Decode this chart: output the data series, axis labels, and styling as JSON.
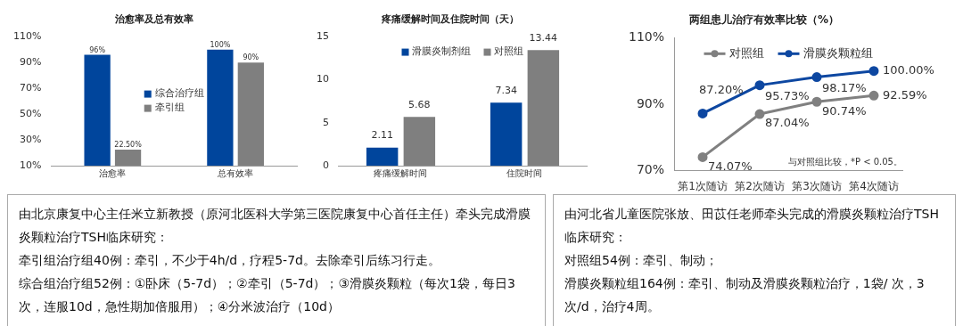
{
  "chart_data": [
    {
      "type": "bar",
      "title": "治愈率及总有效率",
      "categories": [
        "治愈率",
        "总有效率"
      ],
      "series": [
        {
          "name": "综合治疗组",
          "color": "#00459c",
          "values": [
            96,
            100
          ],
          "value_labels": [
            "96%",
            "100%"
          ]
        },
        {
          "name": "牵引组",
          "color": "#7f7f7f",
          "values": [
            22.5,
            90
          ],
          "value_labels": [
            "22.50%",
            "90%"
          ]
        }
      ],
      "ylim": [
        10,
        110
      ],
      "yticks": [
        {
          "value": 10,
          "label": "10%"
        },
        {
          "value": 30,
          "label": "30%"
        },
        {
          "value": 50,
          "label": "50%"
        },
        {
          "value": 70,
          "label": "70%"
        },
        {
          "value": 90,
          "label": "90%"
        },
        {
          "value": 110,
          "label": "110%"
        }
      ],
      "grid": false,
      "legend": "center"
    },
    {
      "type": "bar",
      "title": "疼痛缓解时间及住院时间（天）",
      "categories": [
        "疼痛缓解时间",
        "住院时间"
      ],
      "series": [
        {
          "name": "滑膜炎制剂组",
          "color": "#00459c",
          "values": [
            2.11,
            7.34
          ]
        },
        {
          "name": "对照组",
          "color": "#7f7f7f",
          "values": [
            5.68,
            13.44
          ]
        }
      ],
      "ylim": [
        0,
        15
      ],
      "yticks": [
        0,
        5,
        10,
        15
      ],
      "grid": false,
      "legend": "top",
      "data_labels": true
    },
    {
      "type": "line",
      "title": "两组患儿治疗有效率比较（%）",
      "categories": [
        "第1次随访",
        "第2次随访",
        "第3次随访",
        "第4次随访"
      ],
      "series": [
        {
          "name": "对照组",
          "color": "#808080",
          "values": [
            74.07,
            87.04,
            90.74,
            92.59
          ],
          "value_labels": [
            "74.07%",
            "87.04%",
            "90.74%",
            "92.59%"
          ]
        },
        {
          "name": "滑膜炎颗粒组",
          "color": "#0d47a1",
          "values": [
            87.2,
            95.73,
            98.17,
            100
          ],
          "value_labels": [
            "87.20%",
            "95.73%",
            "98.17%",
            "100.00%"
          ]
        }
      ],
      "ylim": [
        70,
        110
      ],
      "yticks": [
        {
          "value": 70,
          "label": "70%"
        },
        {
          "value": 90,
          "label": "90%"
        },
        {
          "value": 110,
          "label": "110%"
        }
      ],
      "grid": false,
      "legend": "top",
      "marker": "circle",
      "line_style": "solid",
      "annotations": [
        "与对照组比较，*P < 0.05。"
      ]
    },
    {
      "type": "other",
      "annotations": [
        "由北京康复中心主任米立新教授（原河北医科大学第三医院康复中心首任主任）牵头完成滑膜炎颗粒治疗TSH临床研究：",
        "牵引组治疗组40例：牵引，不少于4h/d，疗程5-7d。去除牵引后练习行走。",
        "综合组治疗组52例：①卧床（5-7d）；②牵引（5-7d）；③滑膜炎颗粒（每次1袋，每日3次，连服10d，急性期加倍服用）；④分米波治疗（10d）"
      ]
    },
    {
      "type": "other",
      "annotations": [
        "由河北省儿童医院张放、田苡任老师牵头完成的滑膜炎颗粒治疗TSH临床研究：",
        "对照组54例：牵引、制动；",
        "滑膜炎颗粒组164例：牵引、制动及滑膜炎颗粒治疗，1袋/ 次，3次/d，治疗4周。"
      ]
    }
  ]
}
